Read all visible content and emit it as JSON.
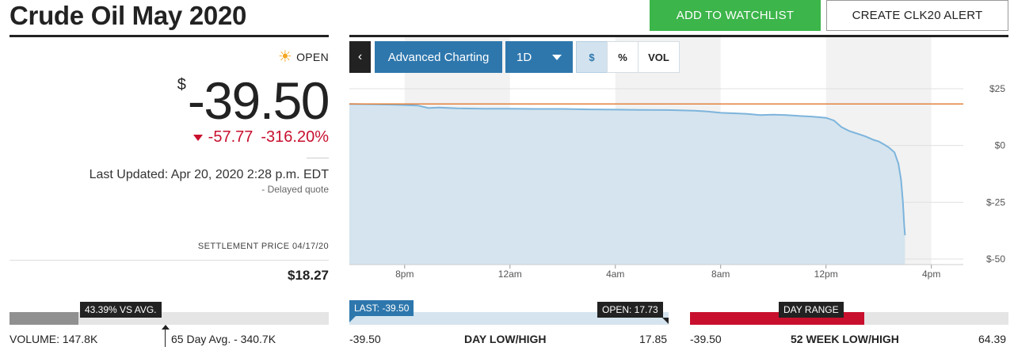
{
  "header": {
    "title": "Crude Oil May 2020",
    "watchlist_label": "ADD TO WATCHLIST",
    "alert_label": "CREATE CLK20 ALERT"
  },
  "quote": {
    "status": "OPEN",
    "currency": "$",
    "price": "-39.50",
    "change": "-57.77",
    "change_pct": "-316.20%",
    "last_updated": "Last Updated: Apr 20, 2020 2:28 p.m. EDT",
    "delayed": "-  Delayed quote",
    "settlement_label": "SETTLEMENT PRICE 04/17/20",
    "settlement_value": "$18.27"
  },
  "toolbar": {
    "back_glyph": "‹",
    "advanced_label": "Advanced Charting",
    "range_label": "1D",
    "dollar_label": "$",
    "pct_label": "%",
    "vol_label": "VOL"
  },
  "chart_data": {
    "type": "area",
    "x_ticks": [
      "8pm",
      "12am",
      "4am",
      "8am",
      "12pm",
      "4pm"
    ],
    "y_ticks": [
      "$25",
      "$0",
      "$-25",
      "$-50"
    ],
    "ylim": [
      -50,
      25
    ],
    "reference_line": 18.27,
    "colors": {
      "line": "#7db4dc",
      "fill": "#d5e4ee",
      "reference": "#e3823d",
      "band": "#f2f2f2"
    },
    "series": [
      {
        "values": [
          [
            -2.1,
            18.3
          ],
          [
            -1.5,
            18.2
          ],
          [
            -1.0,
            18.1
          ],
          [
            -0.5,
            18.0
          ],
          [
            0.0,
            17.8
          ],
          [
            0.5,
            17.6
          ],
          [
            0.9,
            16.5
          ],
          [
            1.3,
            16.7
          ],
          [
            2.0,
            16.4
          ],
          [
            3.0,
            16.2
          ],
          [
            4.0,
            16.2
          ],
          [
            5.0,
            16.1
          ],
          [
            6.0,
            16.1
          ],
          [
            7.0,
            15.9
          ],
          [
            8.0,
            15.8
          ],
          [
            9.0,
            15.7
          ],
          [
            10.0,
            15.6
          ],
          [
            11.0,
            15.3
          ],
          [
            11.5,
            15.0
          ],
          [
            12.0,
            14.4
          ],
          [
            12.5,
            14.2
          ],
          [
            13.0,
            13.9
          ],
          [
            13.5,
            13.4
          ],
          [
            14.0,
            13.6
          ],
          [
            14.5,
            13.4
          ],
          [
            15.0,
            13.0
          ],
          [
            15.5,
            12.7
          ],
          [
            16.0,
            12.2
          ],
          [
            16.3,
            11.0
          ],
          [
            16.6,
            8.0
          ],
          [
            16.9,
            6.3
          ],
          [
            17.2,
            5.2
          ],
          [
            17.5,
            4.0
          ],
          [
            17.8,
            2.5
          ],
          [
            18.0,
            1.8
          ],
          [
            18.2,
            0.5
          ],
          [
            18.4,
            -1.0
          ],
          [
            18.6,
            -3.0
          ],
          [
            18.75,
            -8.0
          ],
          [
            18.85,
            -15.0
          ],
          [
            18.92,
            -25.0
          ],
          [
            18.97,
            -35.0
          ],
          [
            19.0,
            -39.5
          ]
        ]
      }
    ],
    "x_tick_hours": [
      0,
      4,
      8,
      12,
      16,
      20
    ],
    "x_range": [
      -2.1,
      20.1
    ]
  },
  "volume": {
    "tag": "43.39% VS AVG.",
    "fill_fraction": 0.2168,
    "label": "VOLUME: 147.8K",
    "avg_label": "65 Day Avg. - 340.7K"
  },
  "day_range": {
    "last_tag": "LAST: -39.50",
    "open_tag": "OPEN: 17.73",
    "low": "-39.50",
    "title": "DAY LOW/HIGH",
    "high": "17.85"
  },
  "week52": {
    "tag": "DAY RANGE",
    "fill_fraction": 0.548,
    "low": "-39.50",
    "title": "52 WEEK LOW/HIGH",
    "high": "64.39"
  }
}
